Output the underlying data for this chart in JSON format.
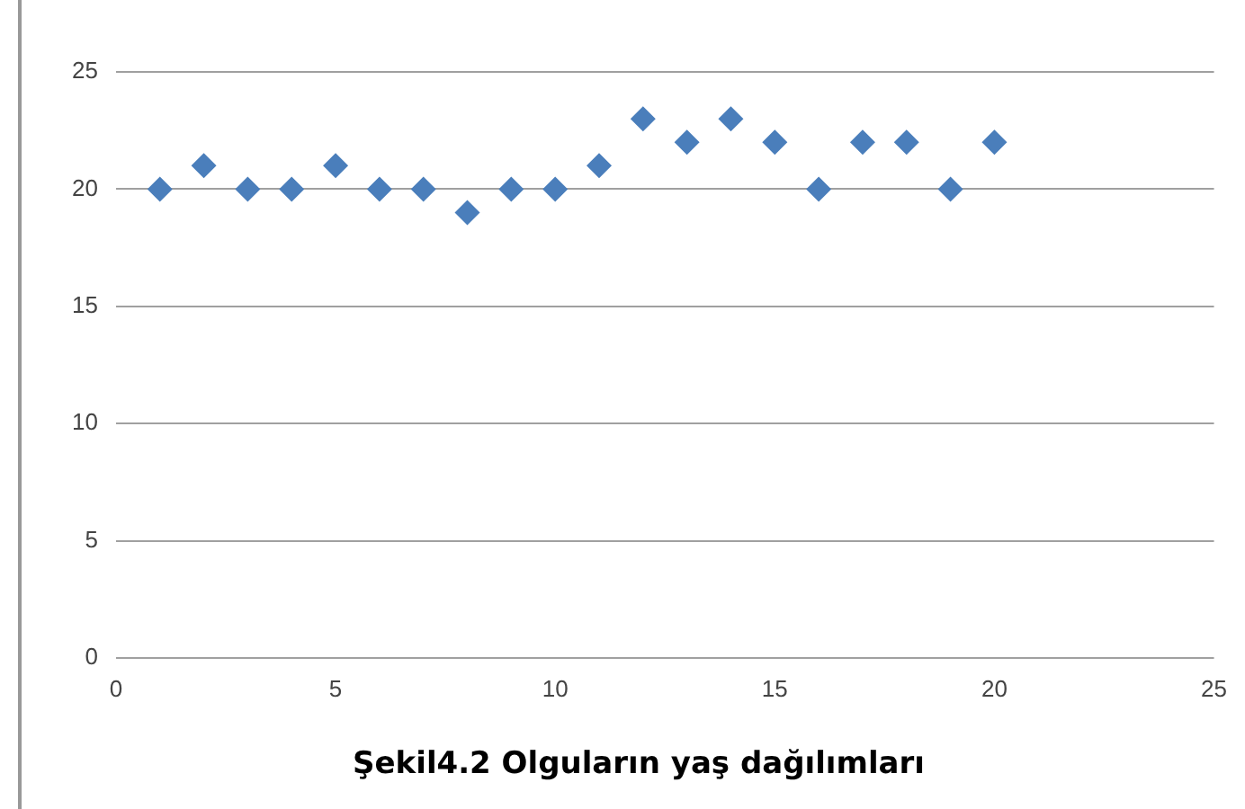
{
  "chart_data": {
    "type": "scatter",
    "title": "Şekil4.2 Olguların yaş dağılımları",
    "x": [
      1,
      2,
      3,
      4,
      5,
      6,
      7,
      8,
      9,
      10,
      11,
      12,
      13,
      14,
      15,
      16,
      17,
      18,
      19,
      20
    ],
    "series": [
      {
        "color": "#4a7ebb",
        "values": [
          20,
          21,
          20,
          20,
          21,
          20,
          20,
          19,
          20,
          20,
          21,
          23,
          22,
          23,
          22,
          20,
          22,
          22,
          20,
          22
        ]
      }
    ],
    "xlim": [
      0,
      25
    ],
    "xticks": [
      0,
      5,
      10,
      15,
      20,
      25
    ],
    "ylim": [
      0,
      25
    ],
    "yticks": [
      0,
      5,
      10,
      15,
      20,
      25
    ],
    "grid": "y",
    "legend": false,
    "marker": "diamond"
  }
}
